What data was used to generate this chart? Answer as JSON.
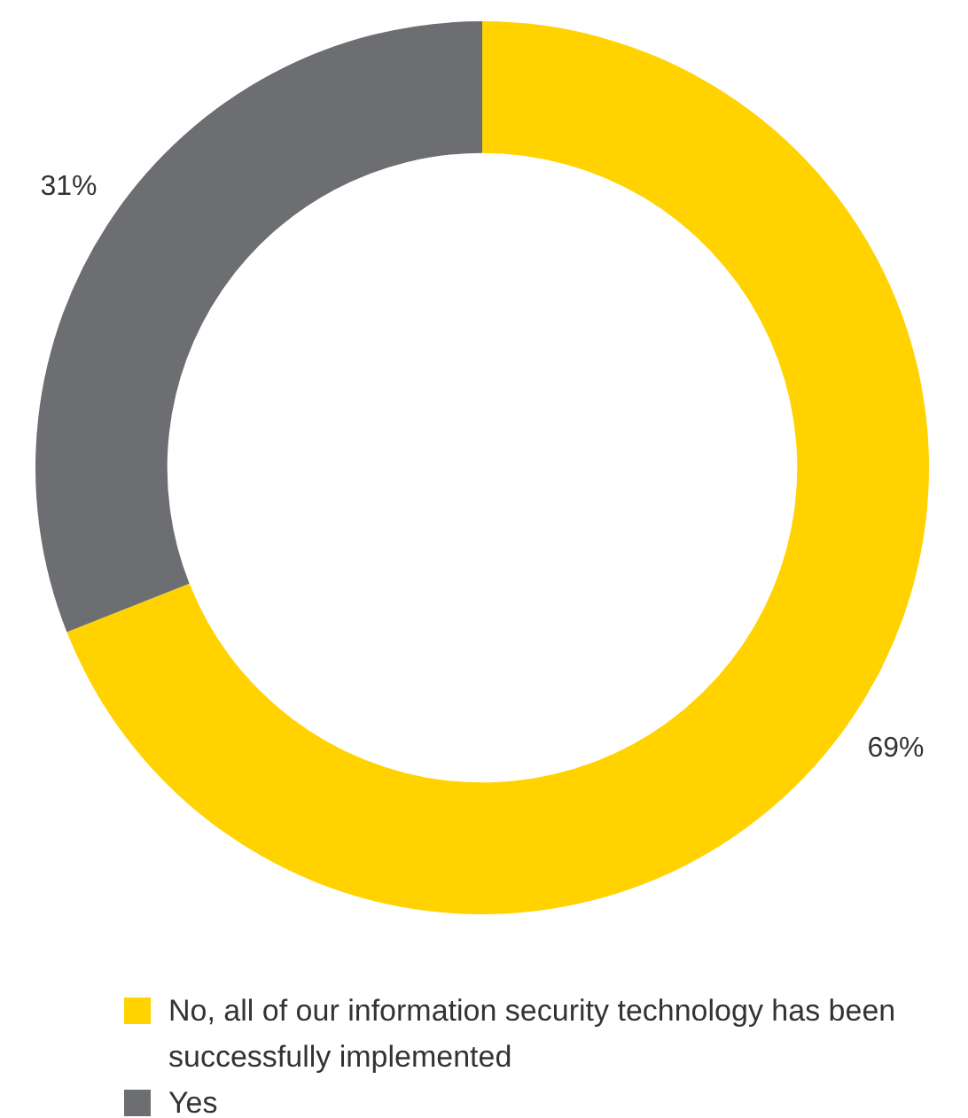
{
  "chart_data": {
    "type": "donut",
    "categories": [
      "No, all of our information security technology has been successfully implemented",
      "Yes"
    ],
    "values": [
      69,
      31
    ],
    "value_labels": [
      "69%",
      "31%"
    ],
    "colors": [
      "#ffd200",
      "#6d6e71"
    ],
    "legend": "bottom"
  }
}
